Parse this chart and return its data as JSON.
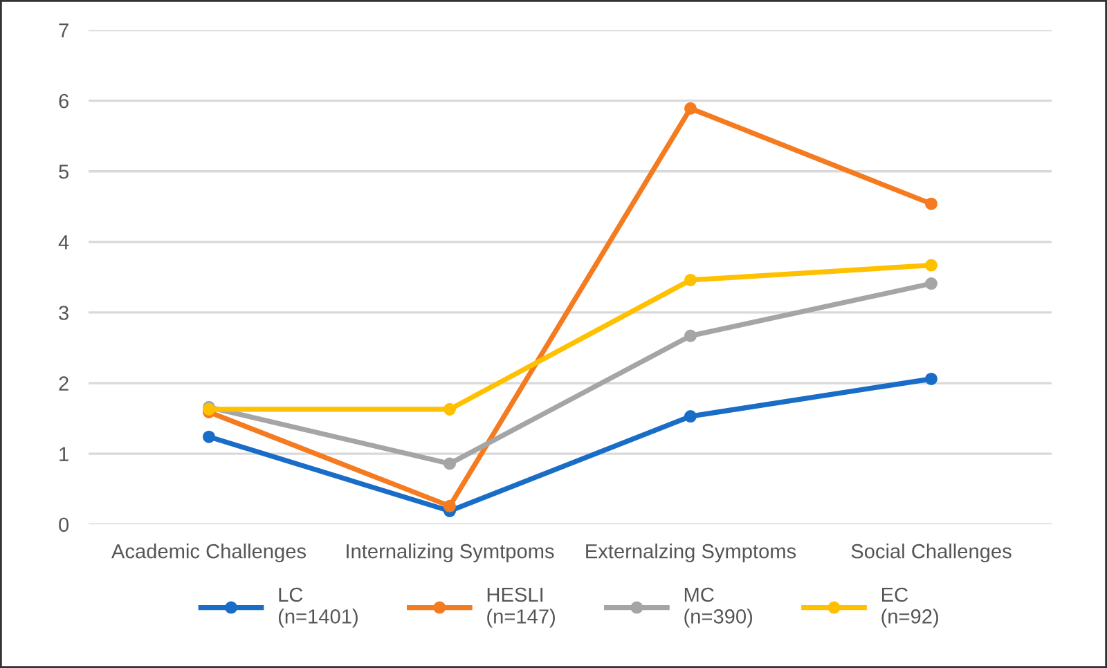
{
  "chart_data": {
    "type": "line",
    "categories": [
      "Academic Challenges",
      "Internalizing Symtpoms",
      "Externalzing Symptoms",
      "Social Challenges"
    ],
    "series": [
      {
        "name": "LC\n(n=1401)",
        "color": "#1a6dc7",
        "values": [
          1.24,
          0.19,
          1.53,
          2.06
        ]
      },
      {
        "name": "HESLI\n(n=147)",
        "color": "#f47b20",
        "values": [
          1.59,
          0.26,
          5.89,
          4.54
        ]
      },
      {
        "name": "MC\n(n=390)",
        "color": "#a5a5a5",
        "values": [
          1.66,
          0.86,
          2.67,
          3.41
        ]
      },
      {
        "name": "EC\n(n=92)",
        "color": "#ffc000",
        "values": [
          1.63,
          1.63,
          3.46,
          3.67
        ]
      }
    ],
    "ylim": [
      0,
      7
    ],
    "yticks": [
      0,
      1,
      2,
      3,
      4,
      5,
      6,
      7
    ],
    "grid": "y",
    "legend": "bottom",
    "marker": "circle",
    "line_style": "solid"
  }
}
